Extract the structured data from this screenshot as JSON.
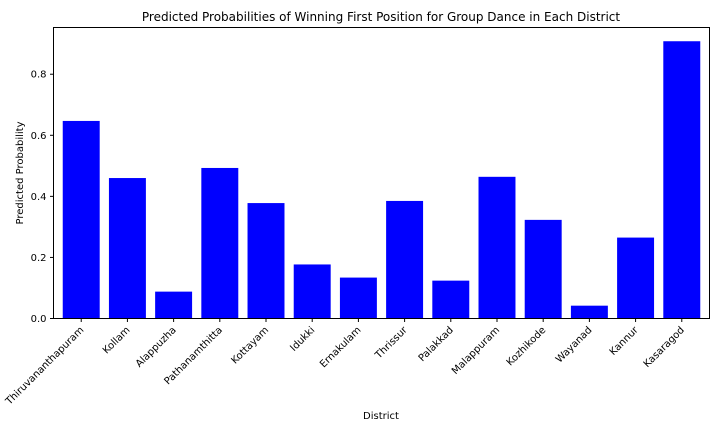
{
  "chart_data": {
    "type": "bar",
    "title": "Predicted Probabilities of Winning First Position for Group Dance in Each District",
    "xlabel": "District",
    "ylabel": "Predicted Probability",
    "categories": [
      "Thiruvananthapuram",
      "Kollam",
      "Alappuzha",
      "Pathanamthitta",
      "Kottayam",
      "Idukki",
      "Ernakulam",
      "Thrissur",
      "Palakkad",
      "Malappuram",
      "Kozhikode",
      "Wayanad",
      "Kannur",
      "Kasaragod"
    ],
    "values": [
      0.647,
      0.46,
      0.088,
      0.493,
      0.378,
      0.177,
      0.134,
      0.385,
      0.124,
      0.464,
      0.323,
      0.042,
      0.265,
      0.908
    ],
    "ylim": [
      0,
      0.953
    ],
    "yticks": [
      0.0,
      0.2,
      0.4,
      0.6,
      0.8
    ],
    "ytick_labels": [
      "0.0",
      "0.2",
      "0.4",
      "0.6",
      "0.8"
    ],
    "bar_color": "#0000ff",
    "grid": false,
    "legend": "none"
  }
}
